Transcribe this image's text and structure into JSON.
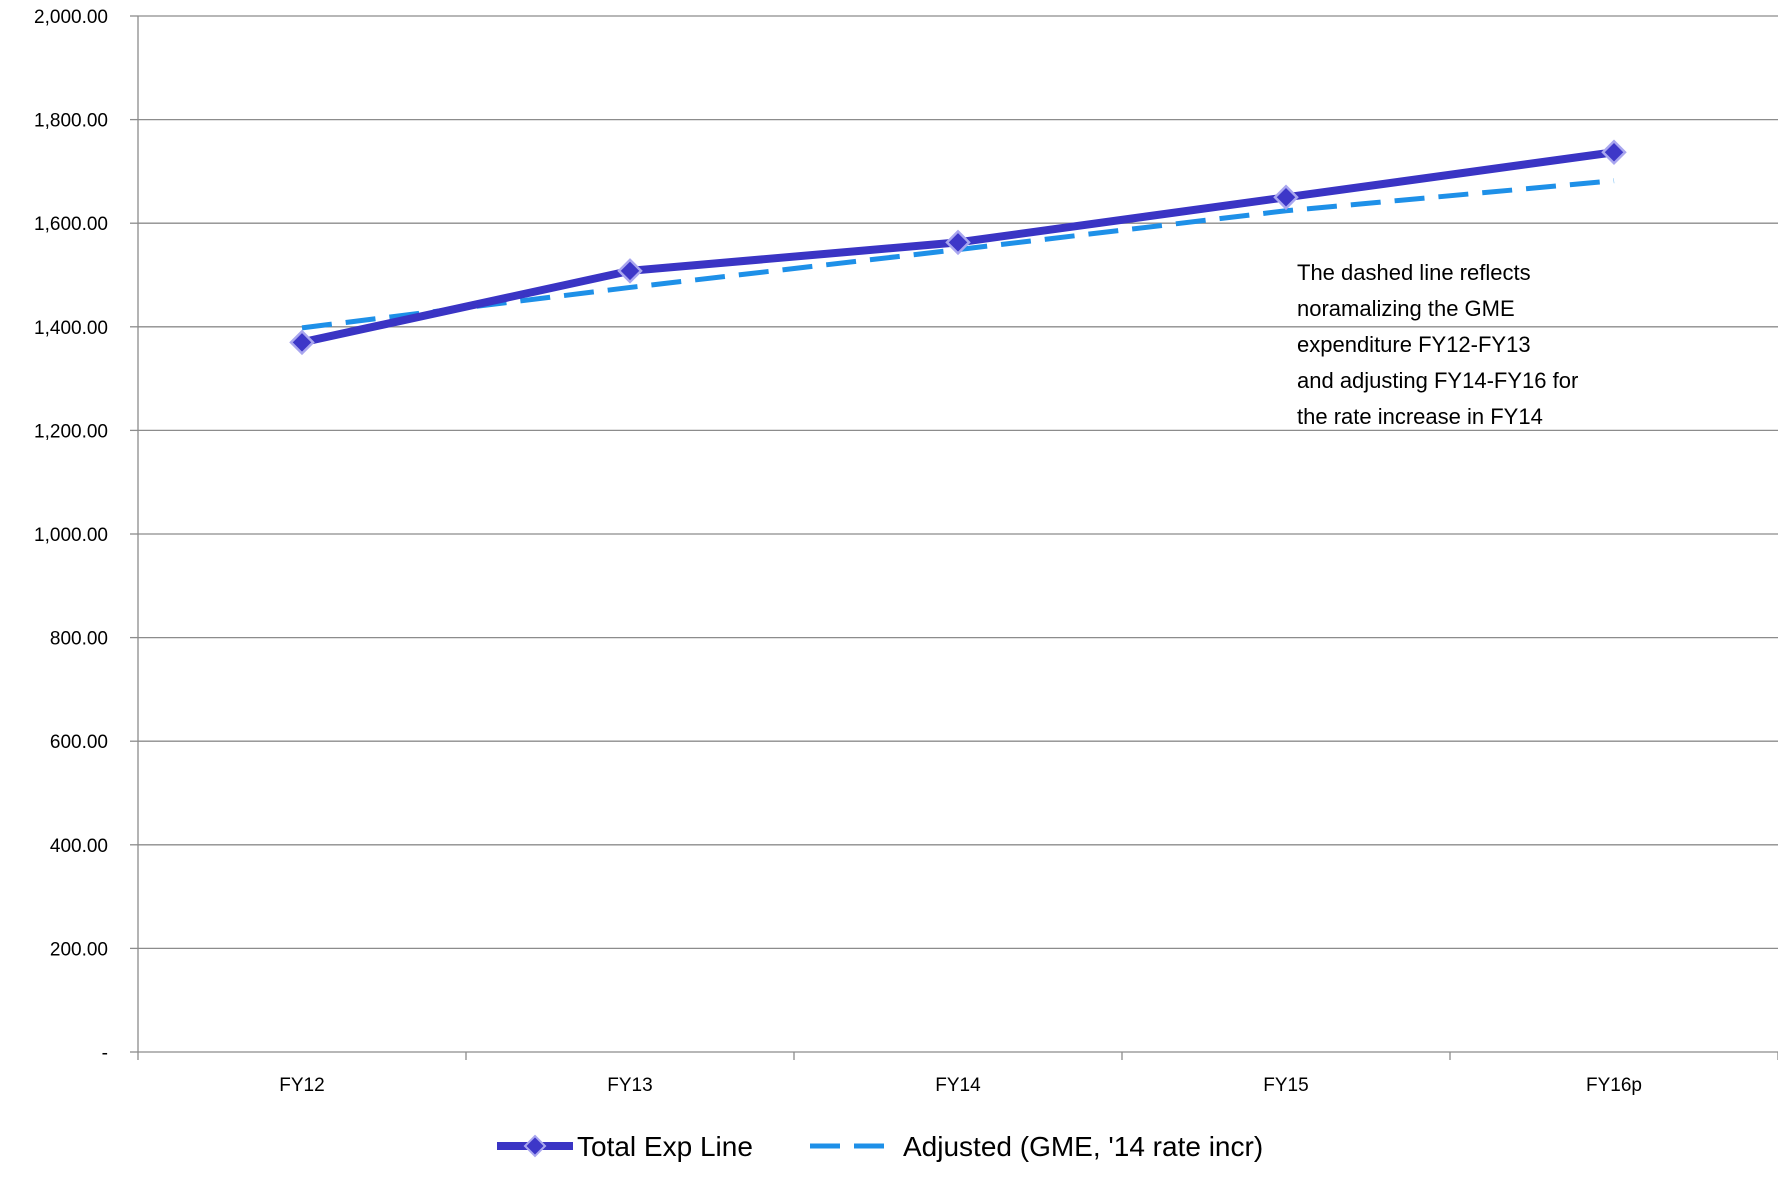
{
  "chart_data": {
    "type": "line",
    "categories": [
      "FY12",
      "FY13",
      "FY14",
      "FY15",
      "FY16p"
    ],
    "ylim": [
      0,
      2000
    ],
    "yticks": [
      {
        "value": 0,
        "label": "-"
      },
      {
        "value": 200,
        "label": "200.00"
      },
      {
        "value": 400,
        "label": "400.00"
      },
      {
        "value": 600,
        "label": "600.00"
      },
      {
        "value": 800,
        "label": "800.00"
      },
      {
        "value": 1000,
        "label": "1,000.00"
      },
      {
        "value": 1200,
        "label": "1,200.00"
      },
      {
        "value": 1400,
        "label": "1,400.00"
      },
      {
        "value": 1600,
        "label": "1,600.00"
      },
      {
        "value": 1800,
        "label": "1,800.00"
      },
      {
        "value": 2000,
        "label": "2,000.00"
      }
    ],
    "grid": true,
    "legend_position": "bottom",
    "series": [
      {
        "name": "Total Exp Line",
        "values": [
          1370,
          1508,
          1563,
          1650,
          1737
        ],
        "color": "#3a34c4",
        "style": "solid",
        "marker": "diamond"
      },
      {
        "name": "Adjusted (GME, '14 rate incr)",
        "values": [
          1398,
          1476,
          1549,
          1624,
          1682
        ],
        "color": "#1e90e8",
        "style": "dashed",
        "marker": "none"
      }
    ],
    "annotation": [
      "The dashed line reflects",
      "noramalizing the GME",
      "expenditure FY12-FY13",
      "and adjusting FY14-FY16 for",
      "the rate increase in FY14"
    ]
  }
}
